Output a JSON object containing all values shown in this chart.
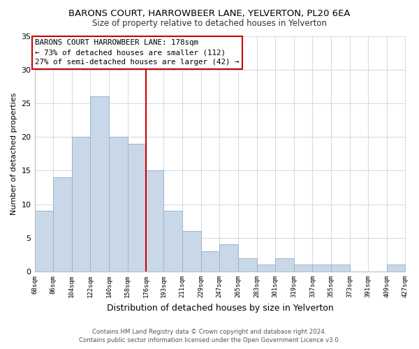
{
  "title": "BARONS COURT, HARROWBEER LANE, YELVERTON, PL20 6EA",
  "subtitle": "Size of property relative to detached houses in Yelverton",
  "xlabel": "Distribution of detached houses by size in Yelverton",
  "ylabel": "Number of detached properties",
  "bar_color": "#c8d8e8",
  "bar_edge_color": "#9ab4cc",
  "bins": [
    68,
    86,
    104,
    122,
    140,
    158,
    176,
    193,
    211,
    229,
    247,
    265,
    283,
    301,
    319,
    337,
    355,
    373,
    391,
    409,
    427
  ],
  "counts": [
    9,
    14,
    20,
    26,
    20,
    19,
    15,
    9,
    6,
    3,
    4,
    2,
    1,
    2,
    1,
    1,
    1,
    0,
    0,
    1
  ],
  "tick_labels": [
    "68sqm",
    "86sqm",
    "104sqm",
    "122sqm",
    "140sqm",
    "158sqm",
    "176sqm",
    "193sqm",
    "211sqm",
    "229sqm",
    "247sqm",
    "265sqm",
    "283sqm",
    "301sqm",
    "319sqm",
    "337sqm",
    "355sqm",
    "373sqm",
    "391sqm",
    "409sqm",
    "427sqm"
  ],
  "vline_x": 176,
  "vline_color": "#cc0000",
  "ylim": [
    0,
    35
  ],
  "yticks": [
    0,
    5,
    10,
    15,
    20,
    25,
    30,
    35
  ],
  "annotation_title": "BARONS COURT HARROWBEER LANE: 178sqm",
  "annotation_line1": "← 73% of detached houses are smaller (112)",
  "annotation_line2": "27% of semi-detached houses are larger (42) →",
  "annotation_box_color": "#ffffff",
  "annotation_box_edge": "#cc0000",
  "footer1": "Contains HM Land Registry data © Crown copyright and database right 2024.",
  "footer2": "Contains public sector information licensed under the Open Government Licence v3.0.",
  "background_color": "#ffffff",
  "grid_color": "#d0dce8"
}
